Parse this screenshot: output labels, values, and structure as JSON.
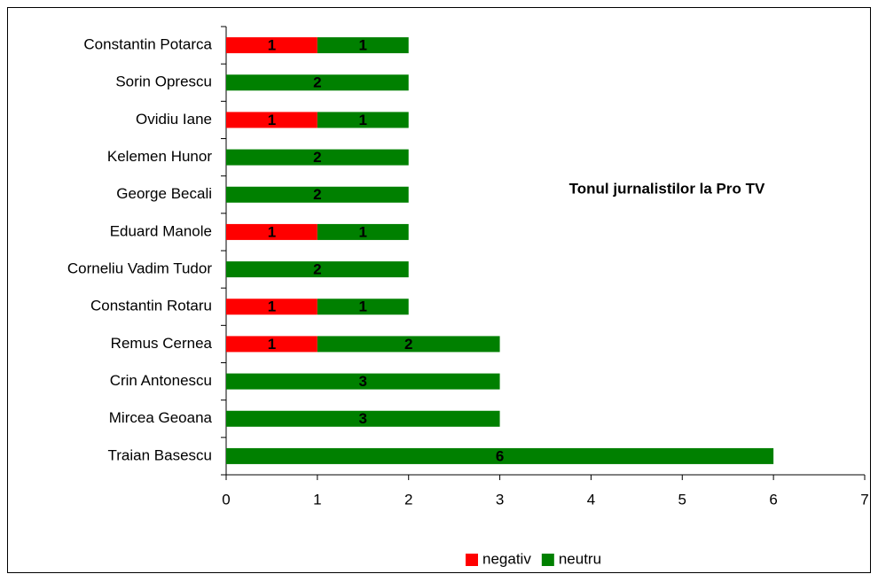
{
  "chart_data": {
    "type": "bar",
    "orientation": "horizontal",
    "stacked": true,
    "title": "Tonul jurnalistilor la Pro TV",
    "categories": [
      "Constantin Potarca",
      "Sorin Oprescu",
      "Ovidiu Iane",
      "Kelemen Hunor",
      "George Becali",
      "Eduard Manole",
      "Corneliu Vadim Tudor",
      "Constantin Rotaru",
      "Remus Cernea",
      "Crin Antonescu",
      "Mircea Geoana",
      "Traian Basescu"
    ],
    "series": [
      {
        "name": "negativ",
        "color": "#ff0000",
        "values": [
          1,
          null,
          1,
          null,
          null,
          1,
          null,
          1,
          1,
          null,
          null,
          null
        ]
      },
      {
        "name": "neutru",
        "color": "#008000",
        "values": [
          1,
          2,
          1,
          2,
          2,
          1,
          2,
          1,
          2,
          3,
          3,
          6
        ]
      }
    ],
    "xlim": [
      0,
      7
    ],
    "xticks": [
      0,
      1,
      2,
      3,
      4,
      5,
      6,
      7
    ],
    "legend": "bottom",
    "grid": false
  }
}
